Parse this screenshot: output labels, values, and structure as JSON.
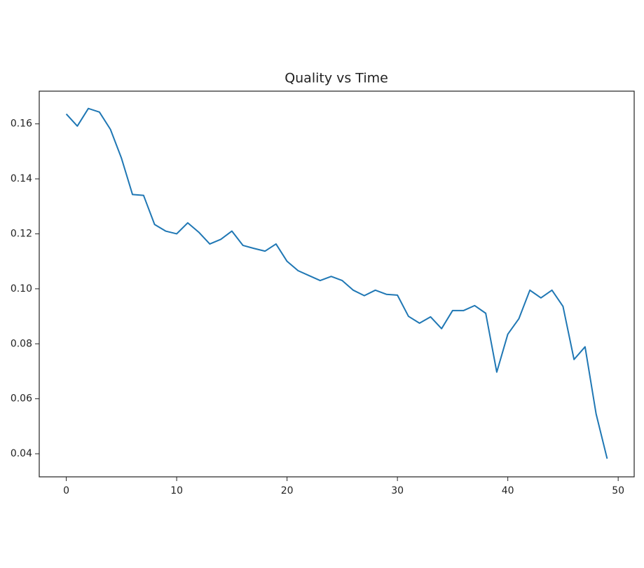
{
  "chart_data": {
    "type": "line",
    "title": "Quality vs Time",
    "x": [
      0,
      1,
      2,
      3,
      4,
      5,
      6,
      7,
      8,
      9,
      10,
      11,
      12,
      13,
      14,
      15,
      16,
      17,
      18,
      19,
      20,
      21,
      22,
      23,
      24,
      25,
      26,
      27,
      28,
      29,
      30,
      31,
      32,
      33,
      34,
      35,
      36,
      37,
      38,
      39,
      40,
      41,
      42,
      43,
      44,
      45,
      46,
      47,
      48,
      49
    ],
    "series": [
      {
        "color": "#1f77b4",
        "values": [
          0.1636,
          0.1592,
          0.1656,
          0.1643,
          0.158,
          0.1475,
          0.1343,
          0.134,
          0.1234,
          0.121,
          0.12,
          0.124,
          0.1206,
          0.1163,
          0.118,
          0.121,
          0.1158,
          0.1147,
          0.1137,
          0.1163,
          0.11,
          0.1066,
          0.1048,
          0.103,
          0.1045,
          0.103,
          0.0995,
          0.0975,
          0.0995,
          0.098,
          0.0977,
          0.09,
          0.0875,
          0.0898,
          0.0855,
          0.0921,
          0.0921,
          0.0939,
          0.0911,
          0.0697,
          0.0835,
          0.0891,
          0.0995,
          0.0967,
          0.0995,
          0.0936,
          0.0743,
          0.0789,
          0.0545,
          0.0382
        ]
      }
    ],
    "xlim": [
      -2.45,
      51.45
    ],
    "xticks": [
      0,
      10,
      20,
      30,
      40,
      50
    ],
    "ylim": [
      0.0316,
      0.1719
    ],
    "yticks": [
      0.04,
      0.06,
      0.08,
      {
        "value": 0.1,
        "label": "0.10"
      },
      0.12,
      0.14,
      0.16
    ],
    "grid": false
  }
}
